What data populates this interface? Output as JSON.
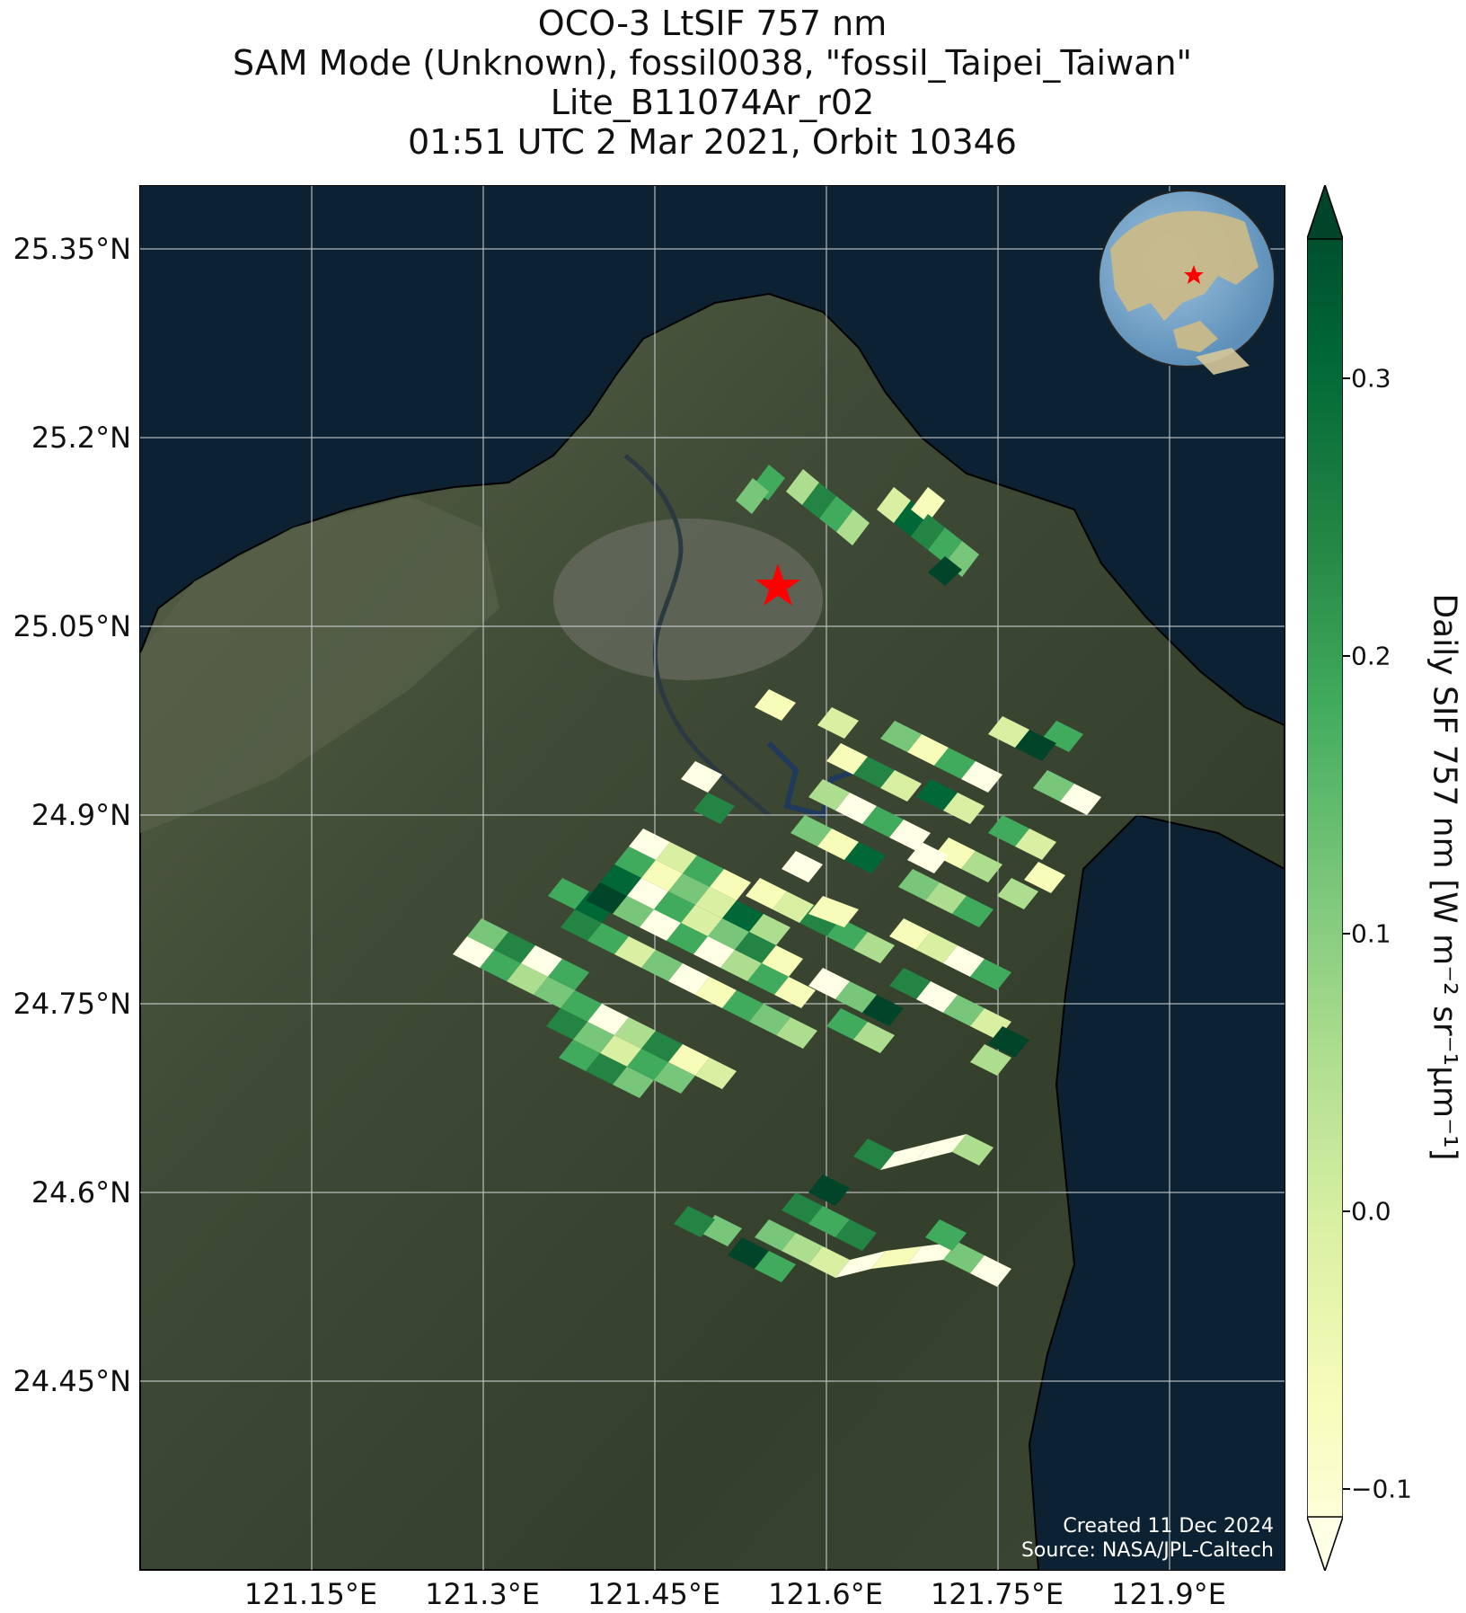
{
  "title": {
    "line1": "OCO-3 LtSIF 757 nm",
    "line2": "SAM Mode (Unknown), fossil0038, \"fossil_Taipei_Taiwan\"",
    "line3": "Lite_B11074Ar_r02",
    "line4": "01:51 UTC 2 Mar 2021, Orbit 10346"
  },
  "axes": {
    "lat_ticks": [
      "25.35°N",
      "25.2°N",
      "25.05°N",
      "24.9°N",
      "24.75°N",
      "24.6°N",
      "24.45°N"
    ],
    "lon_ticks": [
      "121.15°E",
      "121.3°E",
      "121.45°E",
      "121.6°E",
      "121.75°E",
      "121.9°E"
    ]
  },
  "colorbar": {
    "label": "Daily SIF 757 nm [W m⁻² sr⁻¹μm⁻¹]",
    "ticks": [
      "0.3",
      "0.2",
      "0.1",
      "0.0",
      "−0.1"
    ],
    "colors": [
      "#ffffe5",
      "#f7fcb9",
      "#d9f0a3",
      "#addd8e",
      "#78c679",
      "#41ab5d",
      "#238443",
      "#006837",
      "#004529"
    ]
  },
  "credit": {
    "created": "Created 11 Dec 2024",
    "source": "Source: NASA/JPL-Caltech"
  },
  "target": {
    "marker": "red-star",
    "lon": 121.57,
    "lat": 25.04
  },
  "globe_inset": {
    "marker": "red-star"
  },
  "colors": {
    "ocean": "#0c2232",
    "land": "#3b4a32",
    "marker": "#ff0000",
    "credit_text": "#ffffff"
  }
}
